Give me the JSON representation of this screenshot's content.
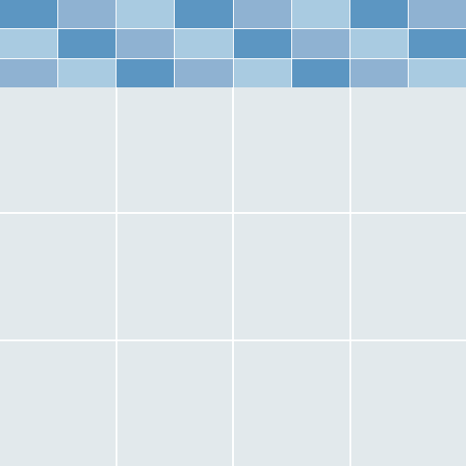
{
  "palette": {
    "dark": "#5c96c2",
    "medium": "#8fb2d2",
    "light": "#a9cbe1",
    "panel": "#e2e9ec",
    "grout": "#ffffff"
  },
  "tile_band": {
    "rows": [
      [
        "dark",
        "medium",
        "light",
        "dark",
        "medium",
        "light",
        "dark",
        "medium"
      ],
      [
        "light",
        "dark",
        "medium",
        "light",
        "dark",
        "medium",
        "light",
        "dark"
      ],
      [
        "medium",
        "light",
        "dark",
        "medium",
        "light",
        "dark",
        "medium",
        "light"
      ]
    ]
  },
  "panel_grid": {
    "rows": 3,
    "cols": 4
  }
}
